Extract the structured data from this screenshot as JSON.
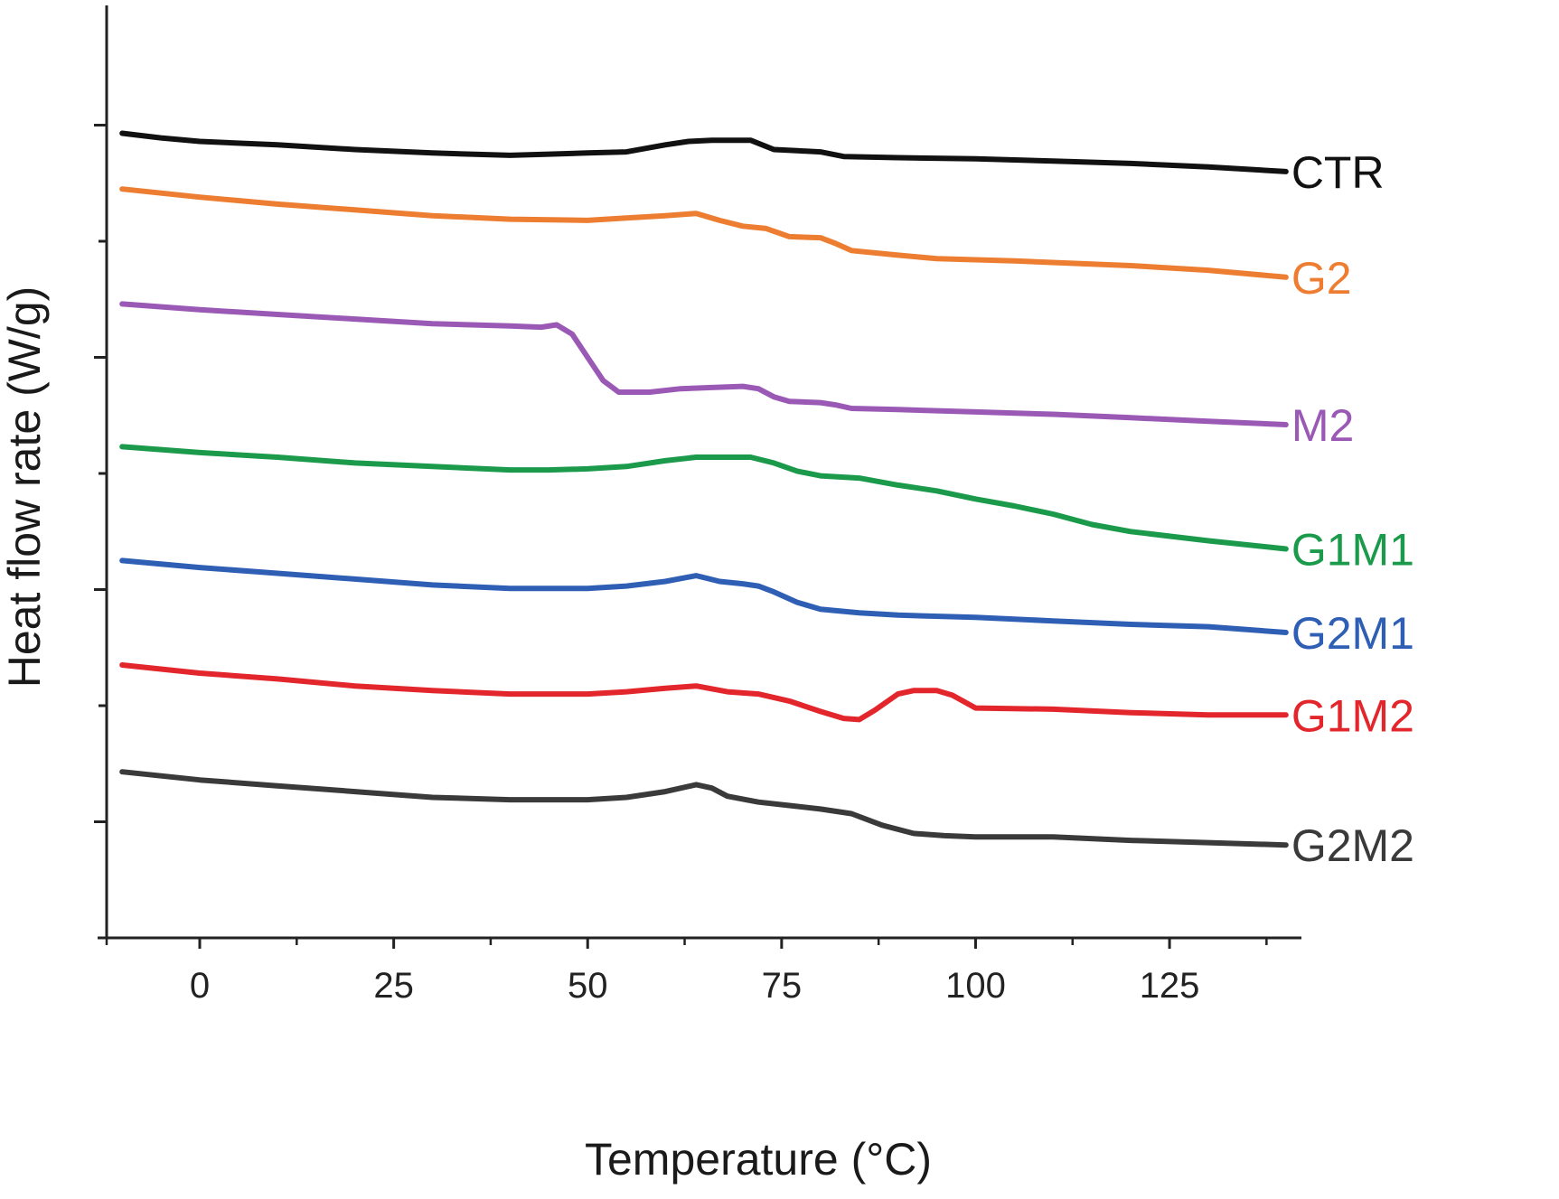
{
  "chart_data": {
    "type": "line",
    "title": "",
    "xlabel": "Temperature (°C)",
    "ylabel": "Heat flow rate (W/g)",
    "xlim": [
      -12,
      142
    ],
    "ylim": [
      0,
      8
    ],
    "x_ticks": [
      0,
      25,
      50,
      75,
      100,
      125
    ],
    "x_tick_labels": [
      "0",
      "25",
      "50",
      "75",
      "100",
      "125"
    ],
    "x_minor_ticks": [
      12.5,
      37.5,
      62.5,
      87.5,
      112.5,
      137.5
    ],
    "y_ticks": [
      1,
      2,
      3,
      4,
      5,
      6,
      7
    ],
    "y_tick_labels": [],
    "grid": false,
    "legend": "inline labels at right end of each curve",
    "series": [
      {
        "name": "CTR",
        "color": "#111111",
        "points": [
          [
            -10,
            6.93
          ],
          [
            -5,
            6.89
          ],
          [
            0,
            6.86
          ],
          [
            10,
            6.83
          ],
          [
            20,
            6.79
          ],
          [
            30,
            6.76
          ],
          [
            40,
            6.74
          ],
          [
            45,
            6.75
          ],
          [
            50,
            6.76
          ],
          [
            55,
            6.77
          ],
          [
            60,
            6.83
          ],
          [
            63,
            6.86
          ],
          [
            66,
            6.87
          ],
          [
            68,
            6.87
          ],
          [
            71,
            6.87
          ],
          [
            74,
            6.79
          ],
          [
            77,
            6.78
          ],
          [
            80,
            6.77
          ],
          [
            83,
            6.73
          ],
          [
            90,
            6.72
          ],
          [
            100,
            6.71
          ],
          [
            110,
            6.69
          ],
          [
            120,
            6.67
          ],
          [
            130,
            6.64
          ],
          [
            140,
            6.6
          ]
        ]
      },
      {
        "name": "G2",
        "color": "#ED7D31",
        "points": [
          [
            -10,
            6.45
          ],
          [
            0,
            6.38
          ],
          [
            10,
            6.32
          ],
          [
            20,
            6.27
          ],
          [
            30,
            6.22
          ],
          [
            40,
            6.19
          ],
          [
            50,
            6.18
          ],
          [
            55,
            6.2
          ],
          [
            60,
            6.22
          ],
          [
            64,
            6.24
          ],
          [
            67,
            6.18
          ],
          [
            70,
            6.13
          ],
          [
            73,
            6.11
          ],
          [
            76,
            6.04
          ],
          [
            80,
            6.03
          ],
          [
            82,
            5.98
          ],
          [
            84,
            5.92
          ],
          [
            90,
            5.88
          ],
          [
            95,
            5.85
          ],
          [
            105,
            5.83
          ],
          [
            120,
            5.79
          ],
          [
            130,
            5.75
          ],
          [
            140,
            5.69
          ]
        ]
      },
      {
        "name": "M2",
        "color": "#9B59B6",
        "points": [
          [
            -10,
            5.46
          ],
          [
            0,
            5.41
          ],
          [
            10,
            5.37
          ],
          [
            20,
            5.33
          ],
          [
            30,
            5.29
          ],
          [
            40,
            5.27
          ],
          [
            44,
            5.26
          ],
          [
            46,
            5.28
          ],
          [
            48,
            5.2
          ],
          [
            50,
            5.0
          ],
          [
            52,
            4.8
          ],
          [
            54,
            4.7
          ],
          [
            58,
            4.7
          ],
          [
            62,
            4.73
          ],
          [
            66,
            4.74
          ],
          [
            70,
            4.75
          ],
          [
            72,
            4.73
          ],
          [
            74,
            4.66
          ],
          [
            76,
            4.62
          ],
          [
            80,
            4.61
          ],
          [
            82,
            4.59
          ],
          [
            84,
            4.56
          ],
          [
            90,
            4.55
          ],
          [
            100,
            4.53
          ],
          [
            110,
            4.51
          ],
          [
            120,
            4.48
          ],
          [
            130,
            4.45
          ],
          [
            140,
            4.42
          ]
        ]
      },
      {
        "name": "G1M1",
        "color": "#1A9A4A",
        "points": [
          [
            -10,
            4.23
          ],
          [
            0,
            4.18
          ],
          [
            10,
            4.14
          ],
          [
            20,
            4.09
          ],
          [
            30,
            4.06
          ],
          [
            40,
            4.03
          ],
          [
            45,
            4.03
          ],
          [
            50,
            4.04
          ],
          [
            55,
            4.06
          ],
          [
            60,
            4.11
          ],
          [
            64,
            4.14
          ],
          [
            68,
            4.14
          ],
          [
            71,
            4.14
          ],
          [
            74,
            4.09
          ],
          [
            77,
            4.02
          ],
          [
            80,
            3.98
          ],
          [
            85,
            3.96
          ],
          [
            90,
            3.9
          ],
          [
            95,
            3.85
          ],
          [
            100,
            3.78
          ],
          [
            105,
            3.72
          ],
          [
            110,
            3.65
          ],
          [
            115,
            3.56
          ],
          [
            120,
            3.5
          ],
          [
            130,
            3.42
          ],
          [
            140,
            3.35
          ]
        ]
      },
      {
        "name": "G2M1",
        "color": "#2F5FB5",
        "points": [
          [
            -10,
            3.25
          ],
          [
            0,
            3.19
          ],
          [
            10,
            3.14
          ],
          [
            20,
            3.09
          ],
          [
            30,
            3.04
          ],
          [
            40,
            3.01
          ],
          [
            50,
            3.01
          ],
          [
            55,
            3.03
          ],
          [
            60,
            3.07
          ],
          [
            64,
            3.12
          ],
          [
            67,
            3.07
          ],
          [
            70,
            3.05
          ],
          [
            72,
            3.03
          ],
          [
            74,
            2.98
          ],
          [
            77,
            2.89
          ],
          [
            80,
            2.83
          ],
          [
            85,
            2.8
          ],
          [
            90,
            2.78
          ],
          [
            100,
            2.76
          ],
          [
            110,
            2.73
          ],
          [
            120,
            2.7
          ],
          [
            130,
            2.68
          ],
          [
            140,
            2.63
          ]
        ]
      },
      {
        "name": "G1M2",
        "color": "#E3262B",
        "points": [
          [
            -10,
            2.35
          ],
          [
            0,
            2.28
          ],
          [
            10,
            2.23
          ],
          [
            20,
            2.17
          ],
          [
            30,
            2.13
          ],
          [
            40,
            2.1
          ],
          [
            50,
            2.1
          ],
          [
            55,
            2.12
          ],
          [
            60,
            2.15
          ],
          [
            64,
            2.17
          ],
          [
            68,
            2.12
          ],
          [
            72,
            2.1
          ],
          [
            76,
            2.04
          ],
          [
            80,
            1.95
          ],
          [
            83,
            1.89
          ],
          [
            85,
            1.88
          ],
          [
            87,
            1.96
          ],
          [
            90,
            2.1
          ],
          [
            92,
            2.13
          ],
          [
            95,
            2.13
          ],
          [
            97,
            2.09
          ],
          [
            100,
            1.98
          ],
          [
            110,
            1.97
          ],
          [
            120,
            1.94
          ],
          [
            130,
            1.92
          ],
          [
            140,
            1.92
          ]
        ]
      },
      {
        "name": "G2M2",
        "color": "#3A3A3A",
        "points": [
          [
            -10,
            1.43
          ],
          [
            0,
            1.36
          ],
          [
            10,
            1.31
          ],
          [
            20,
            1.26
          ],
          [
            30,
            1.21
          ],
          [
            40,
            1.19
          ],
          [
            50,
            1.19
          ],
          [
            55,
            1.21
          ],
          [
            60,
            1.26
          ],
          [
            64,
            1.32
          ],
          [
            66,
            1.29
          ],
          [
            68,
            1.22
          ],
          [
            72,
            1.17
          ],
          [
            76,
            1.14
          ],
          [
            80,
            1.11
          ],
          [
            84,
            1.07
          ],
          [
            88,
            0.97
          ],
          [
            92,
            0.9
          ],
          [
            96,
            0.88
          ],
          [
            100,
            0.87
          ],
          [
            110,
            0.87
          ],
          [
            120,
            0.84
          ],
          [
            130,
            0.82
          ],
          [
            140,
            0.8
          ]
        ]
      }
    ]
  }
}
